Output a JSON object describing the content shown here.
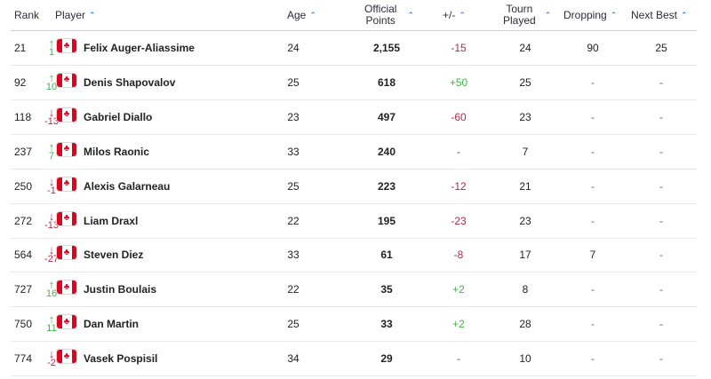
{
  "header": {
    "rank": "Rank",
    "player": "Player",
    "age": "Age",
    "points_line1": "Official",
    "points_line2": "Points",
    "diff": "+/-",
    "played_line1": "Tourn",
    "played_line2": "Played",
    "dropping": "Dropping",
    "next_best": "Next Best"
  },
  "icons": {
    "sort": "chevron-up-icon",
    "flag": "canada-flag-icon",
    "up": "arrow-up-icon",
    "down": "arrow-down-icon"
  },
  "colors": {
    "up": "#3fb548",
    "down": "#b22a4a",
    "accent": "#1a66d6",
    "flag_red": "#d80621"
  },
  "rows": [
    {
      "rank": "21",
      "direction": "up",
      "move": "1",
      "player": "Felix Auger-Aliassime",
      "age": "24",
      "points": "2,155",
      "diff": "-15",
      "played": "24",
      "dropping": "90",
      "next_best": "25"
    },
    {
      "rank": "92",
      "direction": "up",
      "move": "10",
      "player": "Denis Shapovalov",
      "age": "25",
      "points": "618",
      "diff": "+50",
      "played": "25",
      "dropping": "-",
      "next_best": "-"
    },
    {
      "rank": "118",
      "direction": "down",
      "move": "-13",
      "player": "Gabriel Diallo",
      "age": "23",
      "points": "497",
      "diff": "-60",
      "played": "23",
      "dropping": "-",
      "next_best": "-"
    },
    {
      "rank": "237",
      "direction": "up",
      "move": "7",
      "player": "Milos Raonic",
      "age": "33",
      "points": "240",
      "diff": "-",
      "played": "7",
      "dropping": "-",
      "next_best": "-"
    },
    {
      "rank": "250",
      "direction": "down",
      "move": "-1",
      "player": "Alexis Galarneau",
      "age": "25",
      "points": "223",
      "diff": "-12",
      "played": "21",
      "dropping": "-",
      "next_best": "-"
    },
    {
      "rank": "272",
      "direction": "down",
      "move": "-13",
      "player": "Liam Draxl",
      "age": "22",
      "points": "195",
      "diff": "-23",
      "played": "23",
      "dropping": "-",
      "next_best": "-"
    },
    {
      "rank": "564",
      "direction": "down",
      "move": "-27",
      "player": "Steven Diez",
      "age": "33",
      "points": "61",
      "diff": "-8",
      "played": "17",
      "dropping": "7",
      "next_best": "-"
    },
    {
      "rank": "727",
      "direction": "up",
      "move": "16",
      "player": "Justin Boulais",
      "age": "22",
      "points": "35",
      "diff": "+2",
      "played": "8",
      "dropping": "-",
      "next_best": "-"
    },
    {
      "rank": "750",
      "direction": "up",
      "move": "11",
      "player": "Dan Martin",
      "age": "25",
      "points": "33",
      "diff": "+2",
      "played": "28",
      "dropping": "-",
      "next_best": "-"
    },
    {
      "rank": "774",
      "direction": "down",
      "move": "-2",
      "player": "Vasek Pospisil",
      "age": "34",
      "points": "29",
      "diff": "-",
      "played": "10",
      "dropping": "-",
      "next_best": "-"
    }
  ]
}
